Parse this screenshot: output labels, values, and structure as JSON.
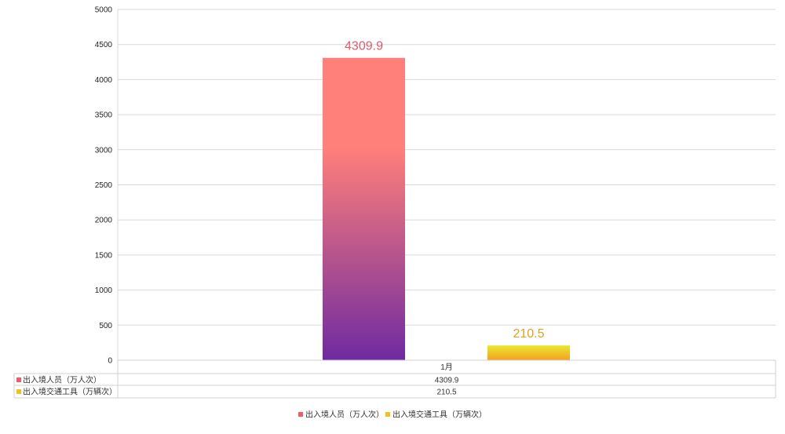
{
  "chart_data": {
    "type": "bar",
    "categories": [
      "1月"
    ],
    "series": [
      {
        "name": "出入境人员（万人次）",
        "values": [
          4309.9
        ],
        "color_top": "#ff7f7a",
        "color_bottom": "#6f2aa0",
        "label_color": "#e05a6f",
        "legend_color": "#ef5a6c"
      },
      {
        "name": "出入境交通工具（万辆次）",
        "values": [
          210.5
        ],
        "color_top": "#e8e830",
        "color_bottom": "#f5a020",
        "label_color": "#e0a020",
        "legend_color": "#f2c21a"
      }
    ],
    "ylim": [
      0,
      5000
    ],
    "yticks": [
      0,
      500,
      1000,
      1500,
      2000,
      2500,
      3000,
      3500,
      4000,
      4500,
      5000
    ],
    "grid": true,
    "data_table": true,
    "legend": "bottom",
    "table_values": [
      "4309.9",
      "210.5"
    ]
  }
}
